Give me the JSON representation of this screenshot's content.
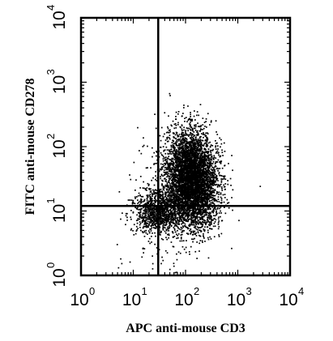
{
  "chart_data": {
    "type": "scatter",
    "title": "",
    "xlabel": "APC anti-mouse CD3",
    "ylabel": "FITC anti-mouse CD278",
    "x_scale": "log",
    "y_scale": "log",
    "xlim": [
      1,
      10000
    ],
    "ylim": [
      1,
      10000
    ],
    "x_ticks": [
      {
        "value": 1,
        "base": "10",
        "exp": "0"
      },
      {
        "value": 10,
        "base": "10",
        "exp": "1"
      },
      {
        "value": 100,
        "base": "10",
        "exp": "2"
      },
      {
        "value": 1000,
        "base": "10",
        "exp": "3"
      },
      {
        "value": 10000,
        "base": "10",
        "exp": "4"
      }
    ],
    "y_ticks": [
      {
        "value": 1,
        "base": "10",
        "exp": "0"
      },
      {
        "value": 10,
        "base": "10",
        "exp": "1"
      },
      {
        "value": 100,
        "base": "10",
        "exp": "2"
      },
      {
        "value": 1000,
        "base": "10",
        "exp": "3"
      },
      {
        "value": 10000,
        "base": "10",
        "exp": "4"
      }
    ],
    "quadrant_gates": {
      "x": 30,
      "y": 12
    },
    "grid": false,
    "legend": "none",
    "marker_color": "#000000",
    "populations": [
      {
        "center_x": 130,
        "center_y": 32,
        "spread_log_x": 0.24,
        "spread_log_y": 0.36,
        "correlation": -0.12,
        "count": 5200
      },
      {
        "center_x": 30,
        "center_y": 10,
        "spread_log_x": 0.24,
        "spread_log_y": 0.17,
        "correlation": 0.15,
        "count": 1100
      },
      {
        "center_x": 60,
        "center_y": 15,
        "spread_log_x": 0.45,
        "spread_log_y": 0.55,
        "correlation": 0.1,
        "count": 350
      }
    ]
  }
}
